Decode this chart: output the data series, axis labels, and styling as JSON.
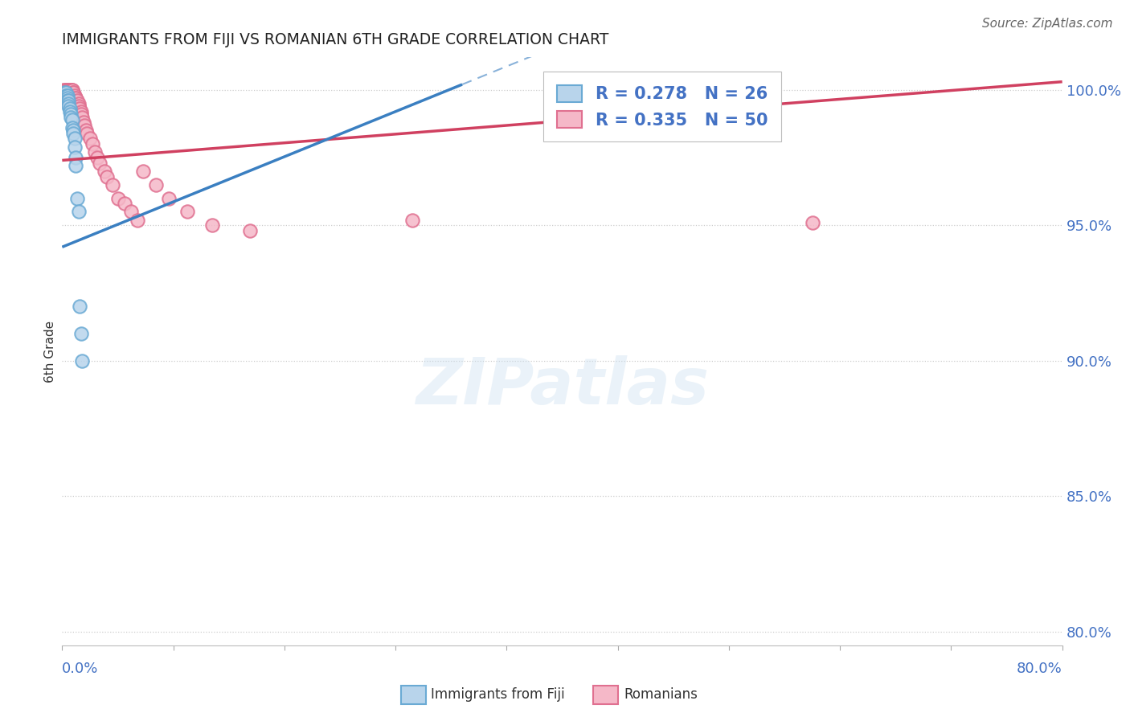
{
  "title": "IMMIGRANTS FROM FIJI VS ROMANIAN 6TH GRADE CORRELATION CHART",
  "source": "Source: ZipAtlas.com",
  "ylabel": "6th Grade",
  "y_ticks": [
    1.0,
    0.95,
    0.9,
    0.85,
    0.8
  ],
  "y_tick_labels": [
    "100.0%",
    "95.0%",
    "90.0%",
    "85.0%",
    "80.0%"
  ],
  "x_range": [
    0.0,
    0.8
  ],
  "y_range": [
    0.795,
    1.012
  ],
  "fiji_R": "0.278",
  "fiji_N": "26",
  "romanian_R": "0.335",
  "romanian_N": "50",
  "fiji_face": "#b8d4eb",
  "fiji_edge": "#6aaad4",
  "romanian_face": "#f5b8c8",
  "romanian_edge": "#e07090",
  "fiji_line": "#3a7fc1",
  "romanian_line": "#d04060",
  "legend_fiji": "Immigrants from Fiji",
  "legend_romanian": "Romanians",
  "text_blue": "#4472c4",
  "title_color": "#222222",
  "source_color": "#666666",
  "grid_color": "#cccccc",
  "watermark": "ZIPatlas",
  "fiji_x": [
    0.002,
    0.003,
    0.003,
    0.004,
    0.004,
    0.004,
    0.005,
    0.005,
    0.005,
    0.006,
    0.006,
    0.007,
    0.007,
    0.008,
    0.008,
    0.009,
    0.009,
    0.01,
    0.01,
    0.011,
    0.011,
    0.012,
    0.013,
    0.014,
    0.015,
    0.016
  ],
  "fiji_y": [
    0.999,
    0.999,
    0.998,
    0.998,
    0.997,
    0.996,
    0.996,
    0.995,
    0.994,
    0.993,
    0.992,
    0.991,
    0.99,
    0.989,
    0.986,
    0.985,
    0.984,
    0.982,
    0.979,
    0.975,
    0.972,
    0.96,
    0.955,
    0.92,
    0.91,
    0.9
  ],
  "romanian_x": [
    0.001,
    0.002,
    0.003,
    0.003,
    0.004,
    0.004,
    0.005,
    0.005,
    0.006,
    0.006,
    0.007,
    0.007,
    0.008,
    0.008,
    0.009,
    0.009,
    0.01,
    0.011,
    0.011,
    0.012,
    0.013,
    0.013,
    0.014,
    0.015,
    0.015,
    0.016,
    0.017,
    0.018,
    0.019,
    0.02,
    0.022,
    0.024,
    0.026,
    0.028,
    0.03,
    0.034,
    0.036,
    0.04,
    0.045,
    0.05,
    0.055,
    0.06,
    0.065,
    0.075,
    0.085,
    0.1,
    0.12,
    0.15,
    0.28,
    0.6
  ],
  "romanian_y": [
    1.0,
    1.0,
    1.0,
    1.0,
    1.0,
    1.0,
    1.0,
    1.0,
    1.0,
    1.0,
    1.0,
    1.0,
    1.0,
    1.0,
    0.999,
    0.999,
    0.998,
    0.997,
    0.997,
    0.996,
    0.995,
    0.994,
    0.993,
    0.992,
    0.991,
    0.99,
    0.988,
    0.987,
    0.985,
    0.984,
    0.982,
    0.98,
    0.977,
    0.975,
    0.973,
    0.97,
    0.968,
    0.965,
    0.96,
    0.958,
    0.955,
    0.952,
    0.97,
    0.965,
    0.96,
    0.955,
    0.95,
    0.948,
    0.952,
    0.951
  ],
  "fiji_trend_x0": 0.0,
  "fiji_trend_y0": 0.942,
  "fiji_trend_x1": 0.32,
  "fiji_trend_y1": 1.002,
  "romanian_trend_x0": 0.0,
  "romanian_trend_y0": 0.974,
  "romanian_trend_x1": 0.8,
  "romanian_trend_y1": 1.003
}
